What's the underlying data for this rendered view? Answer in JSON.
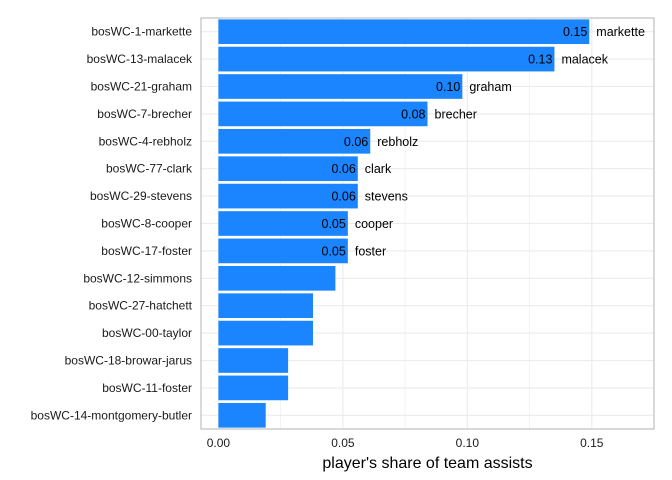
{
  "chart_data": {
    "type": "bar",
    "orientation": "horizontal",
    "categories": [
      "bosWC-1-markette",
      "bosWC-13-malacek",
      "bosWC-21-graham",
      "bosWC-7-brecher",
      "bosWC-4-rebholz",
      "bosWC-77-clark",
      "bosWC-29-stevens",
      "bosWC-8-cooper",
      "bosWC-17-foster",
      "bosWC-12-simmons",
      "bosWC-27-hatchett",
      "bosWC-00-taylor",
      "bosWC-18-browar-jarus",
      "bosWC-11-foster",
      "bosWC-14-montgomery-butler"
    ],
    "values": [
      0.149,
      0.135,
      0.098,
      0.084,
      0.061,
      0.056,
      0.056,
      0.052,
      0.052,
      0.047,
      0.038,
      0.038,
      0.028,
      0.028,
      0.019
    ],
    "data_labels": [
      "0.15",
      "0.13",
      "0.10",
      "0.08",
      "0.06",
      "0.06",
      "0.06",
      "0.05",
      "0.05",
      null,
      null,
      null,
      null,
      null,
      null
    ],
    "name_labels": [
      "markette",
      "malacek",
      "graham",
      "brecher",
      "rebholz",
      "clark",
      "stevens",
      "cooper",
      "foster",
      null,
      null,
      null,
      null,
      null,
      null
    ],
    "xlabel": "player's share of team assists",
    "ylabel": "",
    "xlim": [
      -0.007,
      0.175
    ],
    "xticks": [
      0.0,
      0.05,
      0.1,
      0.15
    ],
    "xtick_labels": [
      "0.00",
      "0.05",
      "0.10",
      "0.15"
    ],
    "grid": true,
    "legend": "none",
    "colors": {
      "bar": "#1a85ff",
      "grid": "#ebebeb",
      "panel_border": "#b3b3b3",
      "text": "#000000"
    }
  }
}
